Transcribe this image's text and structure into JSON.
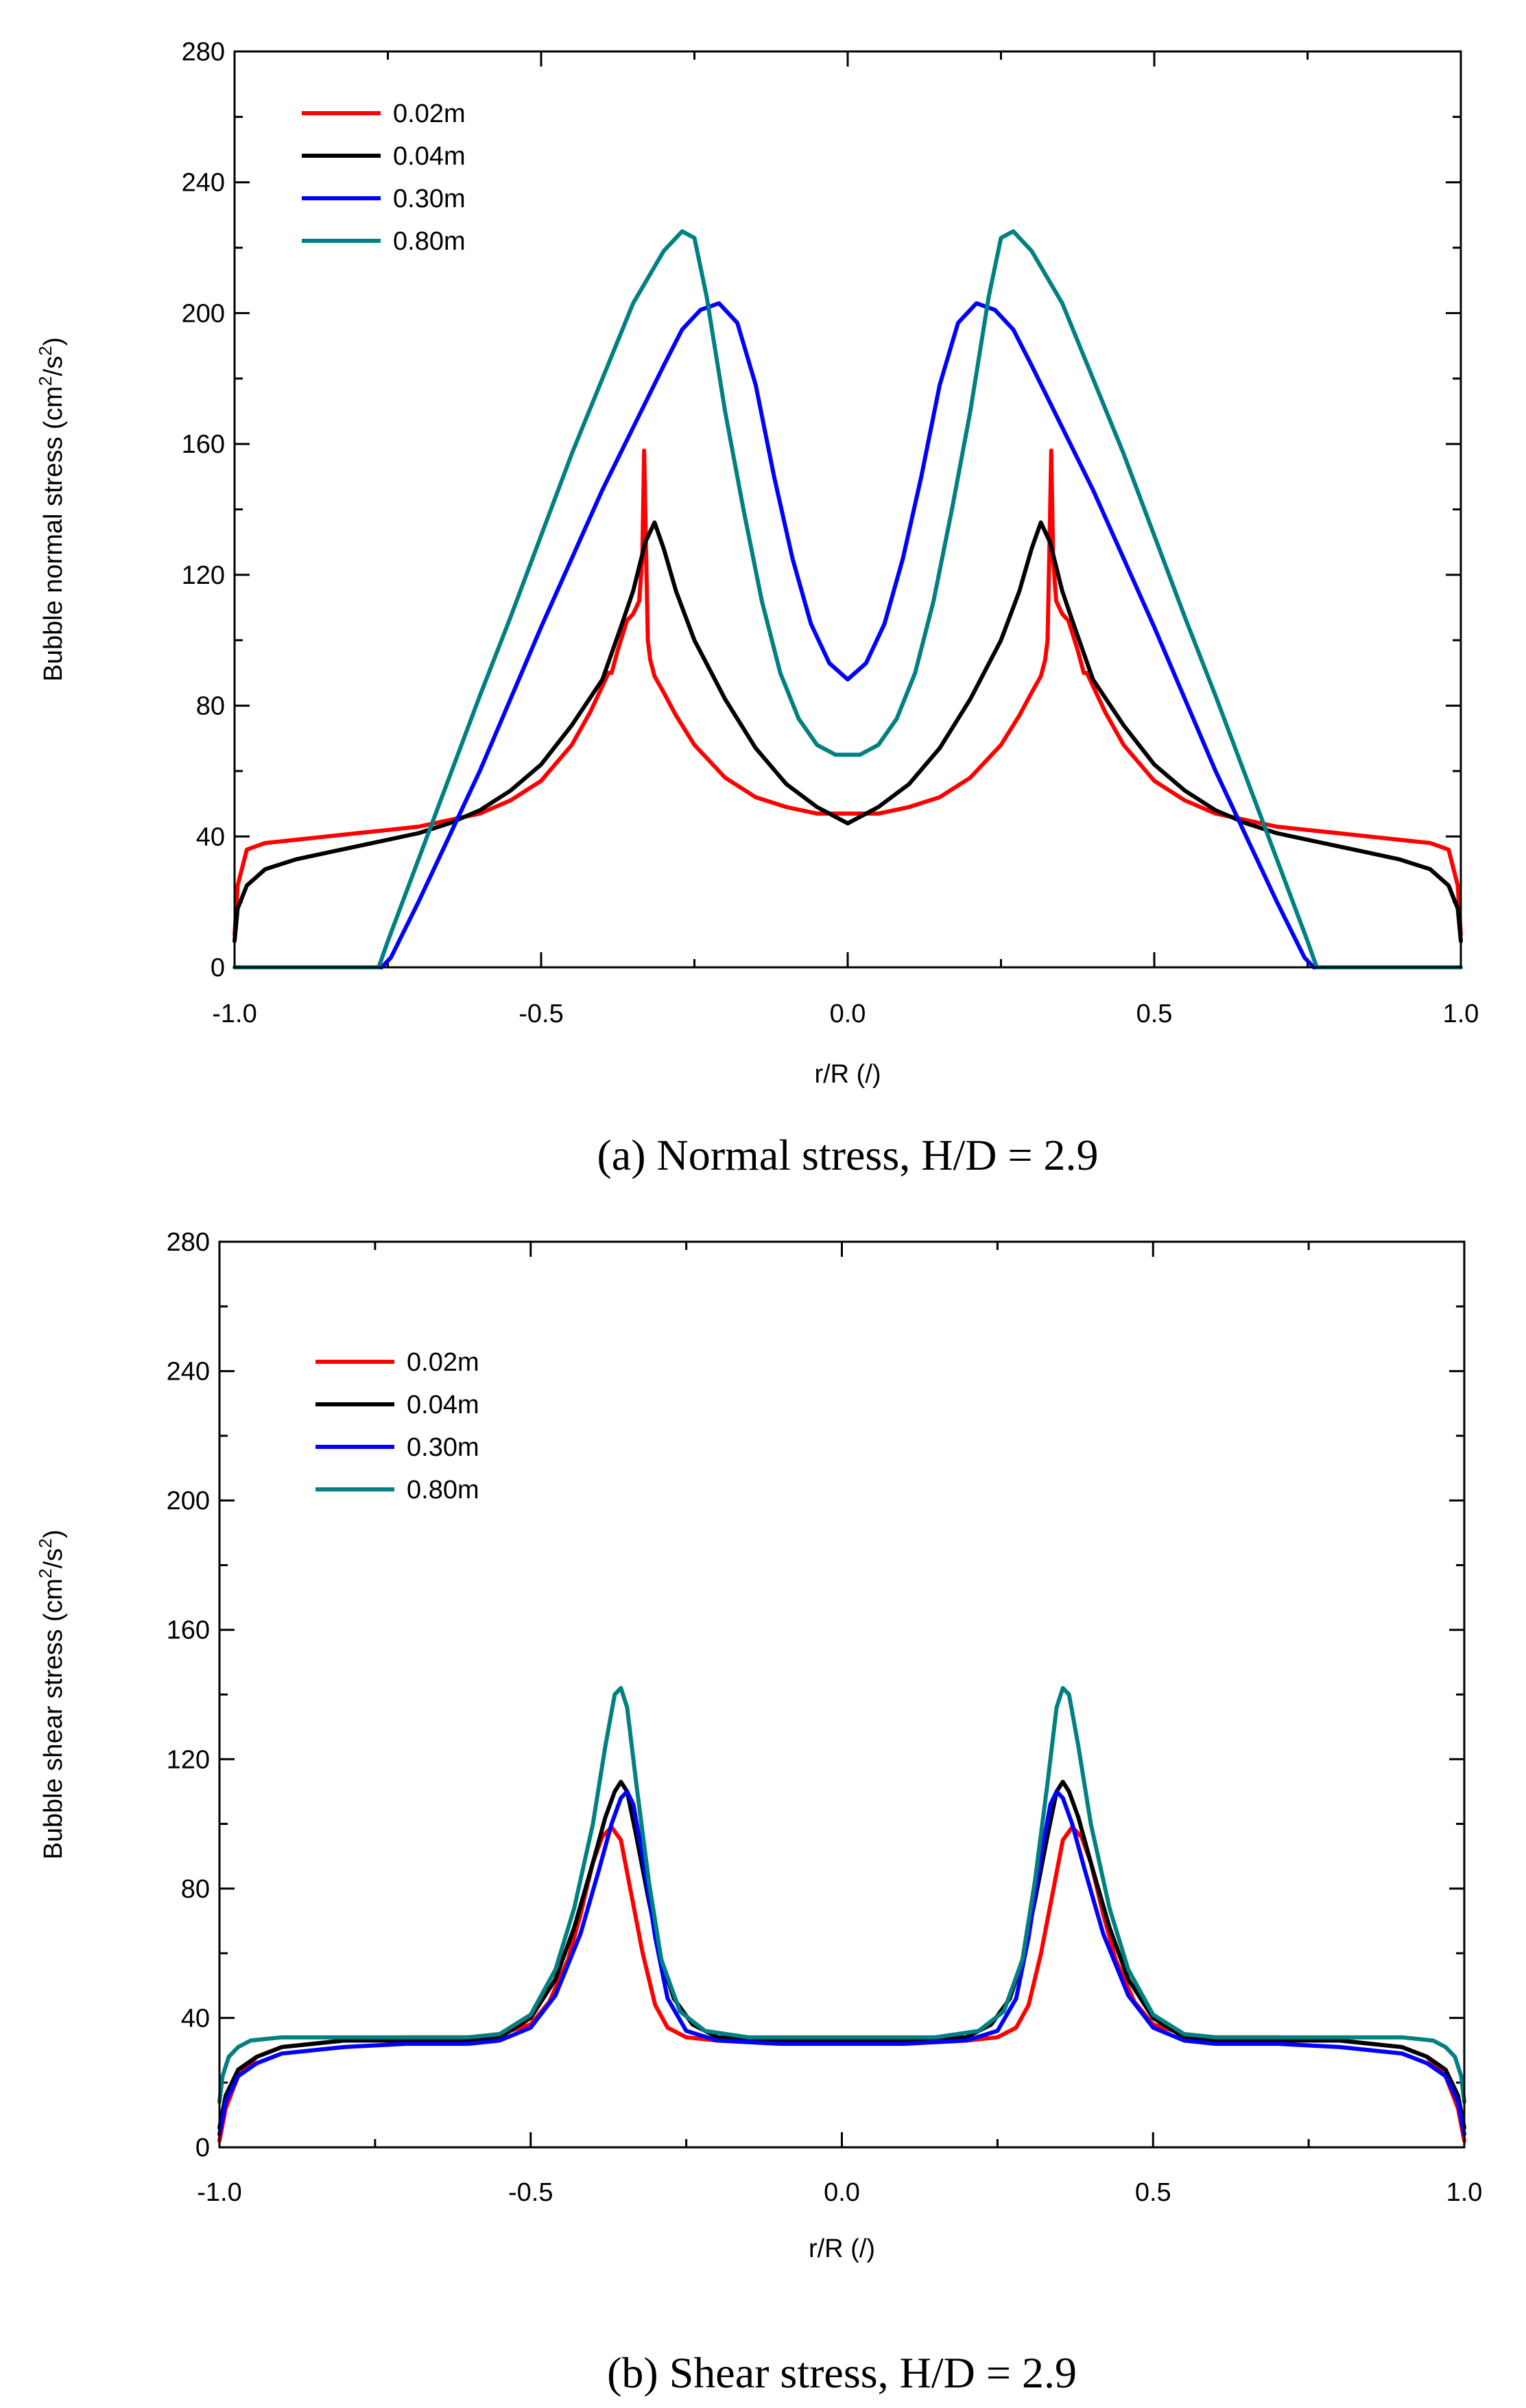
{
  "chart_data": [
    {
      "type": "line",
      "caption": "(a)  Normal stress, H/D = 2.9",
      "xlabel": "r/R (/)",
      "ylabel_main": "Bubble normal stress (cm",
      "ylabel_sup1": "2",
      "ylabel_mid": "/s",
      "ylabel_sup2": "2",
      "ylabel_end": ")",
      "xlim": [
        -1.0,
        1.0
      ],
      "ylim": [
        0,
        280
      ],
      "xticks": [
        "-1.0",
        "-0.5",
        "0.0",
        "0.5",
        "1.0"
      ],
      "xtick_values": [
        -1.0,
        -0.5,
        0.0,
        0.5,
        1.0
      ],
      "yticks": [
        "0",
        "40",
        "80",
        "120",
        "160",
        "200",
        "240",
        "280"
      ],
      "ytick_values": [
        0,
        40,
        80,
        120,
        160,
        200,
        240,
        280
      ],
      "legend_position": "top-left",
      "series": [
        {
          "name": "0.02m",
          "color": "#ff0000",
          "x": [
            -1.0,
            -0.995,
            -0.98,
            -0.95,
            -0.9,
            -0.85,
            -0.8,
            -0.75,
            -0.7,
            -0.65,
            -0.6,
            -0.55,
            -0.5,
            -0.45,
            -0.42,
            -0.4,
            -0.39,
            -0.385,
            -0.375,
            -0.36,
            -0.35,
            -0.34,
            -0.335,
            -0.332,
            -0.329,
            -0.326,
            -0.322,
            -0.315,
            -0.3,
            -0.28,
            -0.25,
            -0.2,
            -0.15,
            -0.1,
            -0.05,
            0.0,
            0.05,
            0.1,
            0.15,
            0.2,
            0.25,
            0.28,
            0.3,
            0.315,
            0.322,
            0.326,
            0.329,
            0.332,
            0.335,
            0.34,
            0.35,
            0.36,
            0.375,
            0.385,
            0.39,
            0.4,
            0.42,
            0.45,
            0.5,
            0.55,
            0.6,
            0.65,
            0.7,
            0.75,
            0.8,
            0.85,
            0.9,
            0.95,
            0.98,
            0.995,
            1.0
          ],
          "y": [
            10,
            25,
            36,
            38,
            39,
            40,
            41,
            42,
            43,
            45,
            47,
            51,
            57,
            68,
            78,
            86,
            90,
            90,
            97,
            106,
            108,
            112,
            125,
            158,
            128,
            100,
            94,
            89,
            84,
            77,
            68,
            58,
            52,
            49,
            47,
            47,
            47,
            49,
            52,
            58,
            68,
            77,
            84,
            89,
            94,
            100,
            128,
            158,
            125,
            112,
            108,
            106,
            97,
            90,
            90,
            86,
            78,
            68,
            57,
            51,
            47,
            45,
            43,
            42,
            41,
            40,
            39,
            38,
            36,
            25,
            10
          ]
        },
        {
          "name": "0.04m",
          "color": "#000000",
          "x": [
            -1.0,
            -0.995,
            -0.98,
            -0.95,
            -0.9,
            -0.85,
            -0.8,
            -0.75,
            -0.7,
            -0.65,
            -0.6,
            -0.55,
            -0.5,
            -0.45,
            -0.4,
            -0.37,
            -0.35,
            -0.33,
            -0.315,
            -0.3,
            -0.28,
            -0.25,
            -0.2,
            -0.15,
            -0.1,
            -0.05,
            0.0,
            0.05,
            0.1,
            0.15,
            0.2,
            0.25,
            0.28,
            0.3,
            0.315,
            0.33,
            0.35,
            0.37,
            0.4,
            0.45,
            0.5,
            0.55,
            0.6,
            0.65,
            0.7,
            0.75,
            0.8,
            0.85,
            0.9,
            0.95,
            0.98,
            0.995,
            1.0
          ],
          "y": [
            8,
            18,
            25,
            30,
            33,
            35,
            37,
            39,
            41,
            44,
            48,
            54,
            62,
            74,
            88,
            104,
            115,
            130,
            136,
            128,
            115,
            100,
            82,
            67,
            56,
            49,
            44,
            49,
            56,
            67,
            82,
            100,
            115,
            128,
            136,
            130,
            115,
            104,
            88,
            74,
            62,
            54,
            48,
            44,
            41,
            39,
            37,
            35,
            33,
            30,
            25,
            18,
            8
          ]
        },
        {
          "name": "0.30m",
          "color": "#0000ff",
          "x": [
            -1.0,
            -0.76,
            -0.745,
            -0.7,
            -0.65,
            -0.6,
            -0.55,
            -0.5,
            -0.45,
            -0.4,
            -0.35,
            -0.3,
            -0.27,
            -0.24,
            -0.21,
            -0.18,
            -0.15,
            -0.12,
            -0.09,
            -0.06,
            -0.03,
            0.0,
            0.03,
            0.06,
            0.09,
            0.12,
            0.15,
            0.18,
            0.21,
            0.24,
            0.27,
            0.3,
            0.35,
            0.4,
            0.45,
            0.5,
            0.55,
            0.6,
            0.65,
            0.7,
            0.745,
            0.76,
            1.0
          ],
          "y": [
            0,
            0,
            3,
            20,
            40,
            60,
            82,
            104,
            125,
            146,
            165,
            184,
            195,
            201,
            203,
            197,
            178,
            150,
            125,
            105,
            93,
            88,
            93,
            105,
            125,
            150,
            178,
            197,
            203,
            201,
            195,
            184,
            165,
            146,
            125,
            104,
            82,
            60,
            40,
            20,
            3,
            0,
            0
          ]
        },
        {
          "name": "0.80m",
          "color": "#008080",
          "x": [
            -1.0,
            -0.765,
            -0.75,
            -0.7,
            -0.65,
            -0.6,
            -0.55,
            -0.5,
            -0.45,
            -0.4,
            -0.35,
            -0.3,
            -0.27,
            -0.25,
            -0.23,
            -0.2,
            -0.17,
            -0.14,
            -0.11,
            -0.08,
            -0.05,
            -0.02,
            0.0,
            0.02,
            0.05,
            0.08,
            0.11,
            0.14,
            0.17,
            0.2,
            0.23,
            0.25,
            0.27,
            0.3,
            0.35,
            0.4,
            0.45,
            0.5,
            0.55,
            0.6,
            0.65,
            0.7,
            0.75,
            0.765,
            1.0
          ],
          "y": [
            0,
            0,
            8,
            33,
            58,
            83,
            107,
            132,
            157,
            180,
            203,
            219,
            225,
            223,
            205,
            170,
            140,
            112,
            90,
            76,
            68,
            65,
            65,
            65,
            68,
            76,
            90,
            112,
            140,
            170,
            205,
            223,
            225,
            219,
            203,
            180,
            157,
            132,
            107,
            83,
            58,
            33,
            8,
            0,
            0
          ]
        }
      ]
    },
    {
      "type": "line",
      "caption": "(b)  Shear stress, H/D = 2.9",
      "xlabel": "r/R (/)",
      "ylabel_main": "Bubble shear stress (cm",
      "ylabel_sup1": "2",
      "ylabel_mid": "/s",
      "ylabel_sup2": "2",
      "ylabel_end": ")",
      "xlim": [
        -1.0,
        1.0
      ],
      "ylim": [
        0,
        280
      ],
      "xticks": [
        "-1.0",
        "-0.5",
        "0.0",
        "0.5",
        "1.0"
      ],
      "xtick_values": [
        -1.0,
        -0.5,
        0.0,
        0.5,
        1.0
      ],
      "yticks": [
        "0",
        "40",
        "80",
        "120",
        "160",
        "200",
        "240",
        "280"
      ],
      "ytick_values": [
        0,
        40,
        80,
        120,
        160,
        200,
        240,
        280
      ],
      "legend_position": "top-left",
      "series": [
        {
          "name": "0.02m",
          "color": "#ff0000",
          "x": [
            -1.0,
            -0.99,
            -0.97,
            -0.94,
            -0.9,
            -0.8,
            -0.7,
            -0.6,
            -0.55,
            -0.5,
            -0.47,
            -0.44,
            -0.42,
            -0.4,
            -0.385,
            -0.37,
            -0.355,
            -0.34,
            -0.32,
            -0.3,
            -0.28,
            -0.25,
            -0.2,
            -0.1,
            0.0,
            0.1,
            0.2,
            0.25,
            0.28,
            0.3,
            0.32,
            0.34,
            0.355,
            0.37,
            0.385,
            0.4,
            0.42,
            0.44,
            0.47,
            0.5,
            0.55,
            0.6,
            0.7,
            0.8,
            0.9,
            0.94,
            0.97,
            0.99,
            1.0
          ],
          "y": [
            2,
            12,
            22,
            28,
            31,
            33,
            34,
            34,
            35,
            38,
            45,
            58,
            72,
            88,
            96,
            99,
            95,
            80,
            60,
            44,
            37,
            34,
            33,
            33,
            33,
            33,
            33,
            34,
            37,
            44,
            60,
            80,
            95,
            99,
            96,
            88,
            72,
            58,
            45,
            38,
            35,
            34,
            34,
            33,
            31,
            28,
            22,
            12,
            2
          ]
        },
        {
          "name": "0.04m",
          "color": "#000000",
          "x": [
            -1.0,
            -0.99,
            -0.97,
            -0.94,
            -0.9,
            -0.8,
            -0.7,
            -0.6,
            -0.55,
            -0.5,
            -0.46,
            -0.43,
            -0.4,
            -0.38,
            -0.365,
            -0.355,
            -0.345,
            -0.33,
            -0.31,
            -0.29,
            -0.27,
            -0.24,
            -0.2,
            -0.1,
            0.0,
            0.1,
            0.2,
            0.24,
            0.27,
            0.29,
            0.31,
            0.33,
            0.345,
            0.355,
            0.365,
            0.38,
            0.4,
            0.43,
            0.46,
            0.5,
            0.55,
            0.6,
            0.7,
            0.8,
            0.9,
            0.94,
            0.97,
            0.99,
            1.0
          ],
          "y": [
            6,
            16,
            24,
            28,
            31,
            33,
            33,
            33,
            34,
            40,
            52,
            68,
            88,
            102,
            110,
            113,
            110,
            96,
            76,
            58,
            46,
            38,
            34,
            33,
            33,
            33,
            34,
            38,
            46,
            58,
            76,
            96,
            110,
            113,
            110,
            102,
            88,
            68,
            52,
            40,
            34,
            33,
            33,
            33,
            31,
            28,
            24,
            16,
            6
          ]
        },
        {
          "name": "0.30m",
          "color": "#0000ff",
          "x": [
            -1.0,
            -0.99,
            -0.97,
            -0.94,
            -0.9,
            -0.8,
            -0.7,
            -0.6,
            -0.55,
            -0.5,
            -0.46,
            -0.42,
            -0.39,
            -0.37,
            -0.355,
            -0.345,
            -0.335,
            -0.32,
            -0.3,
            -0.28,
            -0.25,
            -0.2,
            -0.1,
            0.0,
            0.1,
            0.2,
            0.25,
            0.28,
            0.3,
            0.32,
            0.335,
            0.345,
            0.355,
            0.37,
            0.39,
            0.42,
            0.46,
            0.5,
            0.55,
            0.6,
            0.7,
            0.8,
            0.9,
            0.94,
            0.97,
            0.99,
            1.0
          ],
          "y": [
            4,
            14,
            22,
            26,
            29,
            31,
            32,
            32,
            33,
            37,
            47,
            66,
            86,
            100,
            108,
            110,
            106,
            90,
            65,
            46,
            36,
            33,
            32,
            32,
            32,
            33,
            36,
            46,
            65,
            90,
            106,
            110,
            108,
            100,
            86,
            66,
            47,
            37,
            33,
            32,
            32,
            31,
            29,
            26,
            22,
            14,
            4
          ]
        },
        {
          "name": "0.80m",
          "color": "#008080",
          "x": [
            -1.0,
            -0.995,
            -0.985,
            -0.97,
            -0.95,
            -0.9,
            -0.8,
            -0.7,
            -0.6,
            -0.55,
            -0.5,
            -0.46,
            -0.43,
            -0.4,
            -0.38,
            -0.365,
            -0.355,
            -0.345,
            -0.33,
            -0.31,
            -0.29,
            -0.26,
            -0.22,
            -0.15,
            -0.05,
            0.0,
            0.05,
            0.15,
            0.22,
            0.26,
            0.29,
            0.31,
            0.33,
            0.345,
            0.355,
            0.365,
            0.38,
            0.4,
            0.43,
            0.46,
            0.5,
            0.55,
            0.6,
            0.7,
            0.8,
            0.9,
            0.95,
            0.97,
            0.985,
            0.995,
            1.0
          ],
          "y": [
            14,
            22,
            28,
            31,
            33,
            34,
            34,
            34,
            34,
            35,
            41,
            55,
            74,
            100,
            124,
            140,
            142,
            136,
            112,
            82,
            58,
            42,
            36,
            34,
            34,
            34,
            34,
            34,
            36,
            42,
            58,
            82,
            112,
            136,
            142,
            140,
            124,
            100,
            74,
            55,
            41,
            35,
            34,
            34,
            34,
            34,
            33,
            31,
            28,
            22,
            14
          ]
        }
      ]
    }
  ]
}
